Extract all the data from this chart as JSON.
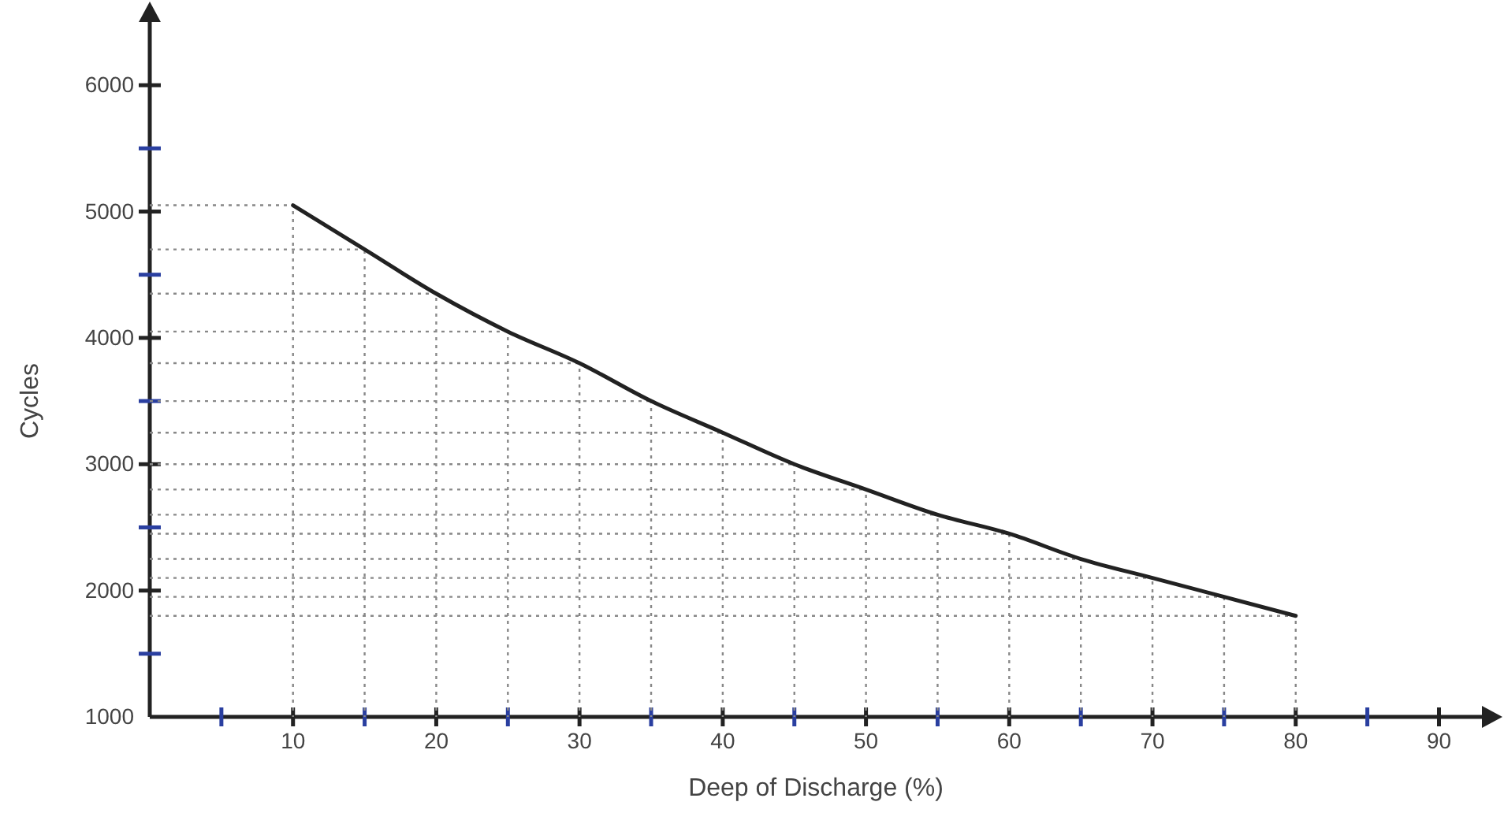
{
  "chart_data": {
    "type": "line",
    "xlabel": "Deep of Discharge (%)",
    "ylabel": "Cycles",
    "x": [
      10,
      15,
      20,
      25,
      30,
      35,
      40,
      45,
      50,
      55,
      60,
      65,
      70,
      75,
      80
    ],
    "series": [
      {
        "color": "#222222",
        "values": [
          5050,
          4700,
          4350,
          4050,
          3800,
          3500,
          3250,
          3000,
          2800,
          2600,
          2450,
          2250,
          2100,
          1950,
          1800
        ]
      }
    ],
    "xlim": [
      0,
      93
    ],
    "ylim": [
      1000,
      6500
    ],
    "xticks": [
      {
        "value": 5,
        "label": null
      },
      10,
      {
        "value": 15,
        "label": null
      },
      20,
      {
        "value": 25,
        "label": null
      },
      30,
      {
        "value": 35,
        "label": null
      },
      40,
      {
        "value": 45,
        "label": null
      },
      50,
      {
        "value": 55,
        "label": null
      },
      60,
      {
        "value": 65,
        "label": null
      },
      70,
      {
        "value": 75,
        "label": null
      },
      80,
      {
        "value": 85,
        "label": null
      },
      90
    ],
    "yticks": [
      1000,
      {
        "value": 1500,
        "label": null
      },
      2000,
      {
        "value": 2500,
        "label": null
      },
      3000,
      {
        "value": 3500,
        "label": null
      },
      4000,
      {
        "value": 4500,
        "label": null
      },
      5000,
      {
        "value": 5500,
        "label": null
      },
      6000
    ],
    "marker": "none",
    "line_style": "solid",
    "ref_lines": [
      {
        "axis": "x",
        "value": 10,
        "color": "#888888",
        "line_style": "dotted"
      },
      {
        "axis": "x",
        "value": 15,
        "color": "#888888",
        "line_style": "dotted"
      },
      {
        "axis": "x",
        "value": 20,
        "color": "#888888",
        "line_style": "dotted"
      },
      {
        "axis": "x",
        "value": 25,
        "color": "#888888",
        "line_style": "dotted"
      },
      {
        "axis": "x",
        "value": 30,
        "color": "#888888",
        "line_style": "dotted"
      },
      {
        "axis": "x",
        "value": 35,
        "color": "#888888",
        "line_style": "dotted"
      },
      {
        "axis": "x",
        "value": 40,
        "color": "#888888",
        "line_style": "dotted"
      },
      {
        "axis": "x",
        "value": 45,
        "color": "#888888",
        "line_style": "dotted"
      },
      {
        "axis": "x",
        "value": 50,
        "color": "#888888",
        "line_style": "dotted"
      },
      {
        "axis": "x",
        "value": 55,
        "color": "#888888",
        "line_style": "dotted"
      },
      {
        "axis": "x",
        "value": 60,
        "color": "#888888",
        "line_style": "dotted"
      },
      {
        "axis": "x",
        "value": 65,
        "color": "#888888",
        "line_style": "dotted"
      },
      {
        "axis": "x",
        "value": 70,
        "color": "#888888",
        "line_style": "dotted"
      },
      {
        "axis": "x",
        "value": 75,
        "color": "#888888",
        "line_style": "dotted"
      },
      {
        "axis": "x",
        "value": 80,
        "color": "#888888",
        "line_style": "dotted"
      },
      {
        "axis": "y",
        "value": 5050,
        "color": "#888888",
        "line_style": "dotted"
      },
      {
        "axis": "y",
        "value": 4700,
        "color": "#888888",
        "line_style": "dotted"
      },
      {
        "axis": "y",
        "value": 4350,
        "color": "#888888",
        "line_style": "dotted"
      },
      {
        "axis": "y",
        "value": 4050,
        "color": "#888888",
        "line_style": "dotted"
      },
      {
        "axis": "y",
        "value": 3800,
        "color": "#888888",
        "line_style": "dotted"
      },
      {
        "axis": "y",
        "value": 3500,
        "color": "#888888",
        "line_style": "dotted"
      },
      {
        "axis": "y",
        "value": 3250,
        "color": "#888888",
        "line_style": "dotted"
      },
      {
        "axis": "y",
        "value": 3000,
        "color": "#888888",
        "line_style": "dotted"
      },
      {
        "axis": "y",
        "value": 2800,
        "color": "#888888",
        "line_style": "dotted"
      },
      {
        "axis": "y",
        "value": 2600,
        "color": "#888888",
        "line_style": "dotted"
      },
      {
        "axis": "y",
        "value": 2450,
        "color": "#888888",
        "line_style": "dotted"
      },
      {
        "axis": "y",
        "value": 2250,
        "color": "#888888",
        "line_style": "dotted"
      },
      {
        "axis": "y",
        "value": 2100,
        "color": "#888888",
        "line_style": "dotted"
      },
      {
        "axis": "y",
        "value": 1950,
        "color": "#888888",
        "line_style": "dotted"
      },
      {
        "axis": "y",
        "value": 1800,
        "color": "#888888",
        "line_style": "dotted"
      }
    ]
  }
}
